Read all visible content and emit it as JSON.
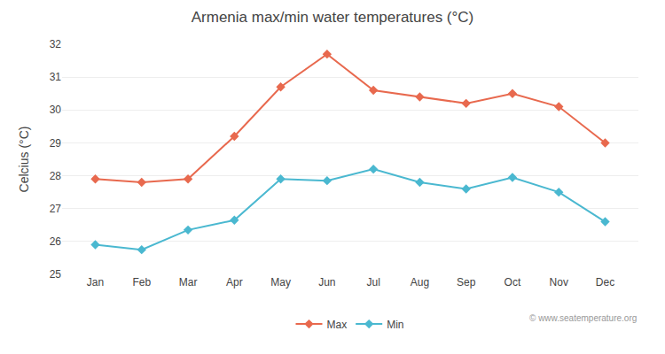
{
  "chart_data": {
    "type": "line",
    "title": "Armenia max/min water temperatures (°C)",
    "ylabel": "Celcius (°C)",
    "categories": [
      "Jan",
      "Feb",
      "Mar",
      "Apr",
      "May",
      "Jun",
      "Jul",
      "Aug",
      "Sep",
      "Oct",
      "Nov",
      "Dec"
    ],
    "series": [
      {
        "name": "Max",
        "color": "#e8694e",
        "values": [
          27.9,
          27.8,
          27.9,
          29.2,
          30.7,
          31.7,
          30.6,
          30.4,
          30.2,
          30.5,
          30.1,
          29.0
        ]
      },
      {
        "name": "Min",
        "color": "#4ab8d0",
        "values": [
          25.9,
          25.75,
          26.35,
          26.65,
          27.9,
          27.85,
          28.2,
          27.8,
          27.6,
          27.95,
          27.5,
          26.6
        ]
      }
    ],
    "ylim": [
      25,
      32
    ],
    "yticks": [
      25,
      26,
      27,
      28,
      29,
      30,
      31,
      32
    ],
    "grid": true,
    "legend": "bottom",
    "marker": "diamond",
    "annotations": [
      "© www.seatemperature.org"
    ]
  }
}
